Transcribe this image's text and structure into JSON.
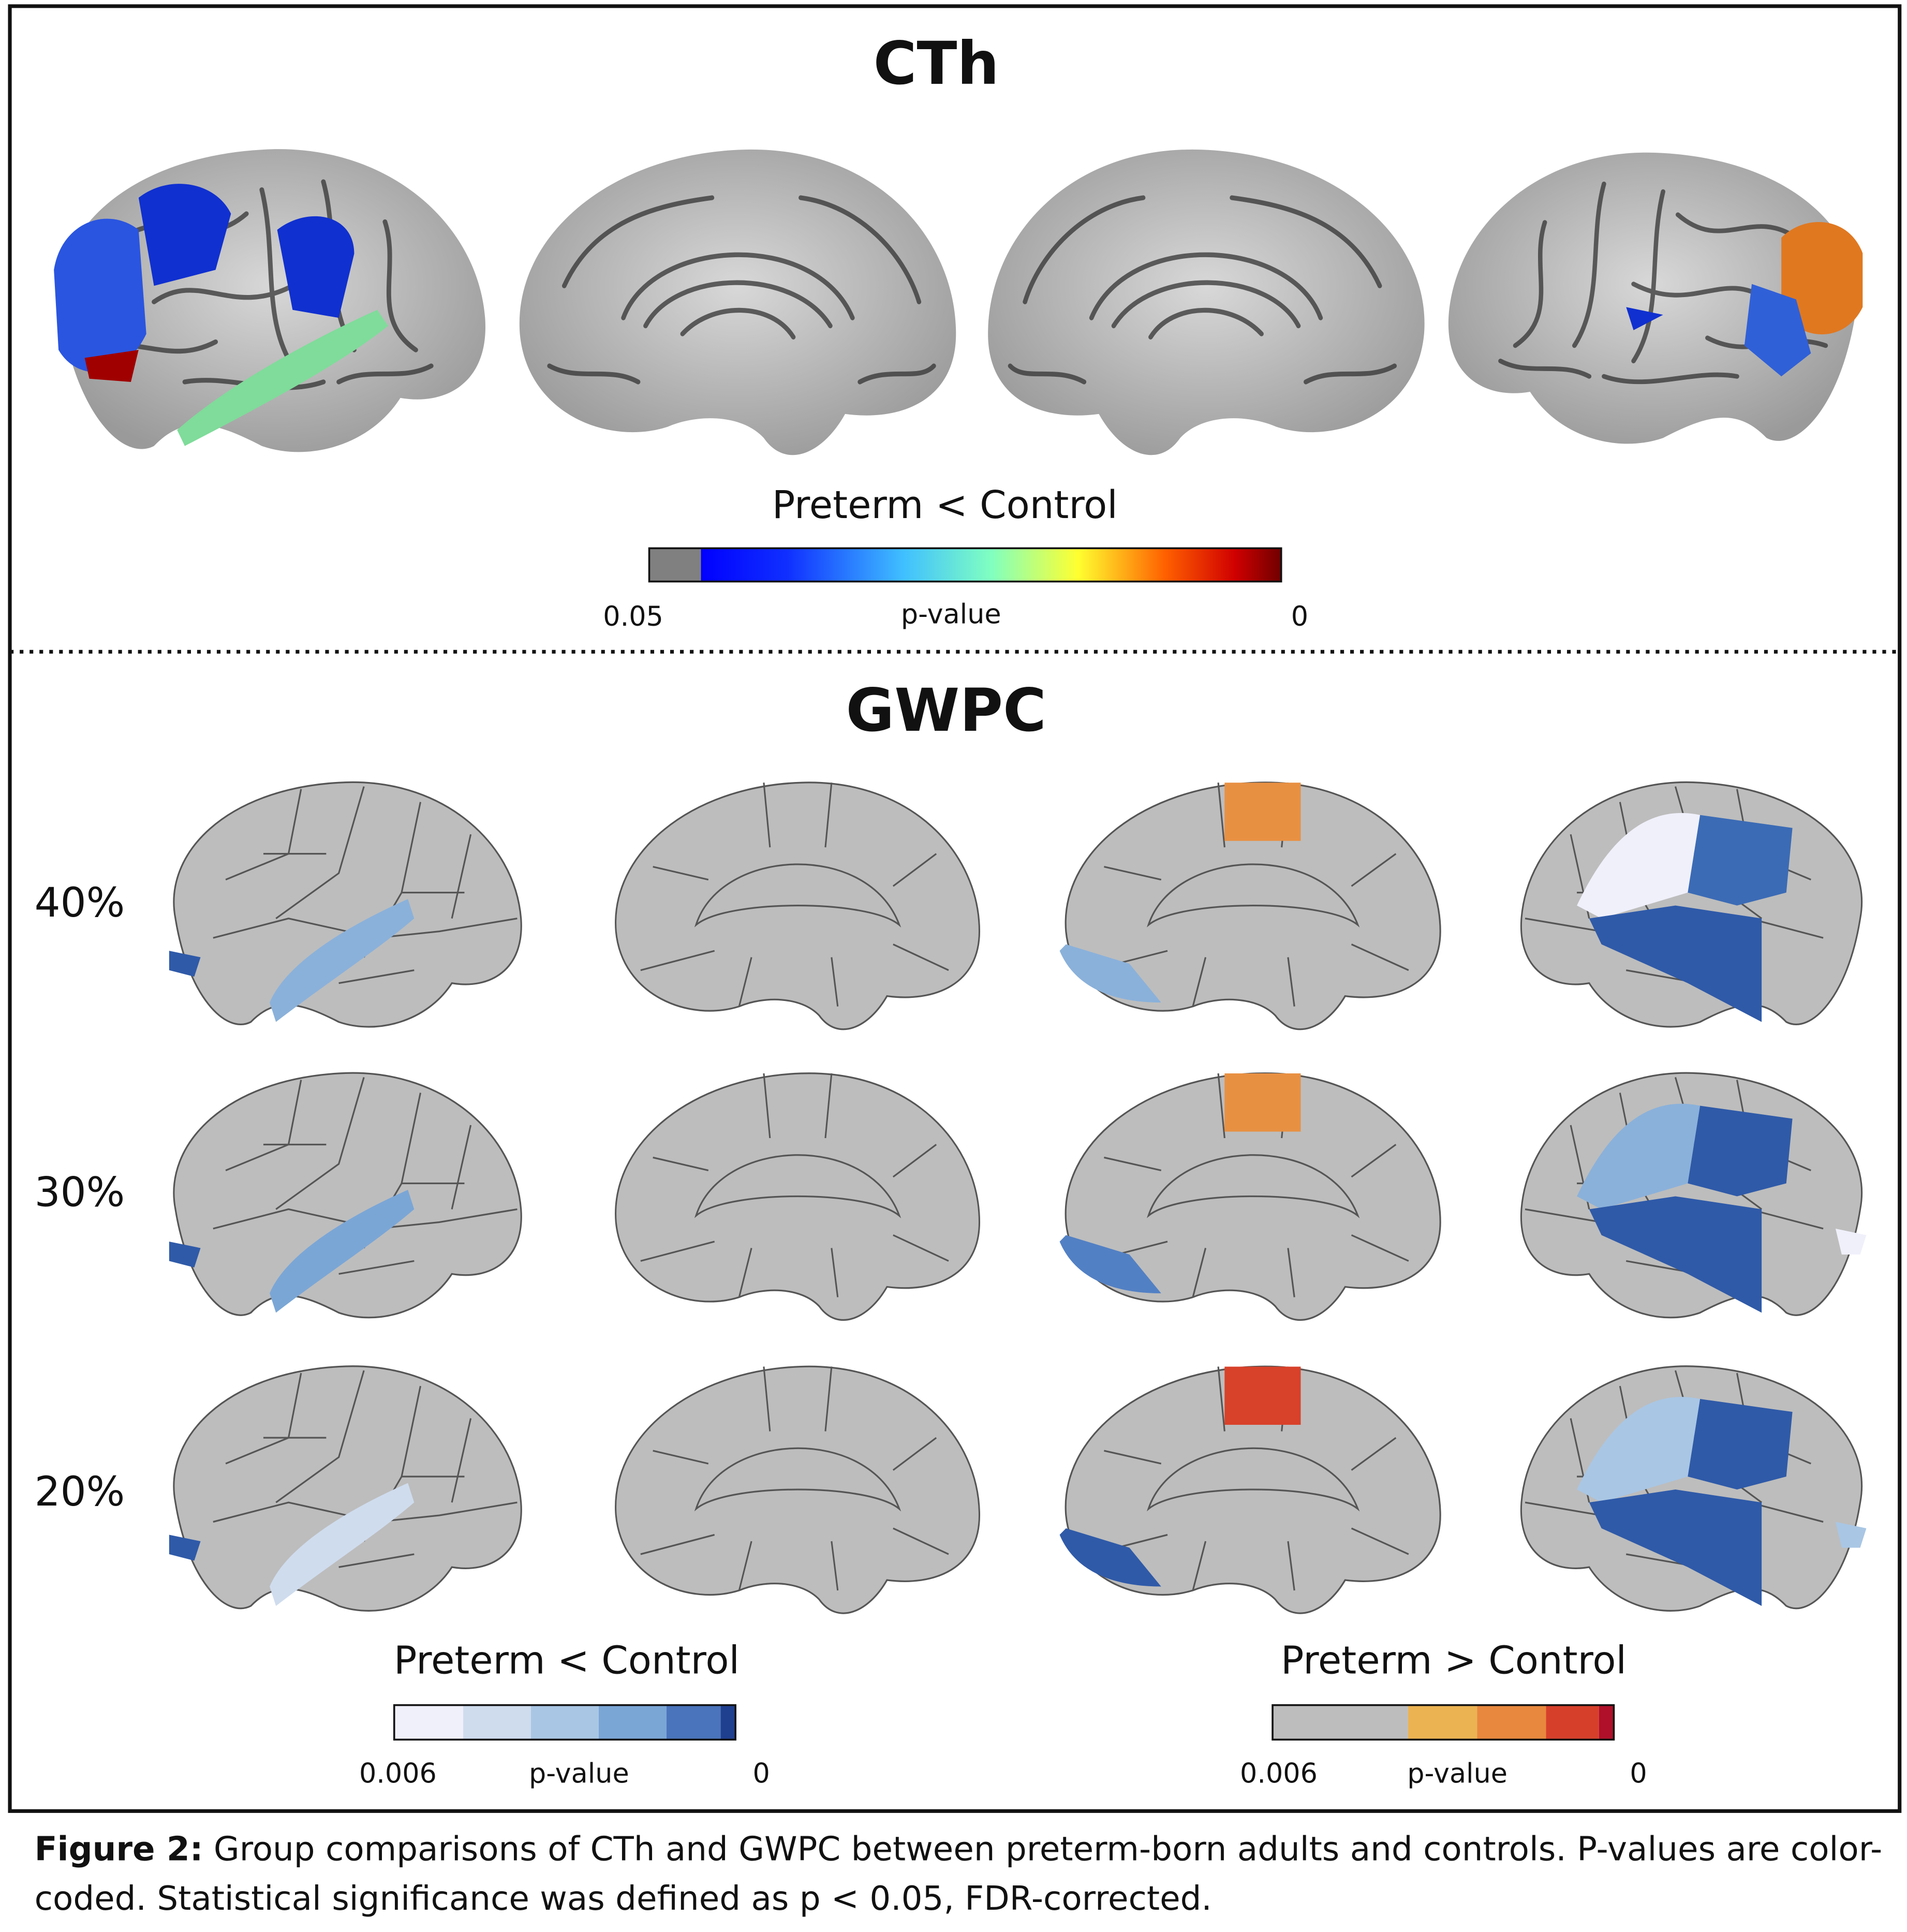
{
  "panels": [
    {
      "title": "CTh",
      "legend": {
        "title": "Preterm < Control",
        "min_label": "0.05",
        "axis_label": "p-value",
        "max_label": "0"
      }
    },
    {
      "title": "GWPC",
      "rows": [
        "40%",
        "30%",
        "20%"
      ],
      "legends": [
        {
          "title": "Preterm < Control",
          "min_label": "0.006",
          "axis_label": "p-value",
          "max_label": "0"
        },
        {
          "title": "Preterm > Control",
          "min_label": "0.006",
          "axis_label": "p-value",
          "max_label": "0"
        }
      ]
    }
  ],
  "caption": {
    "label": "Figure 2:",
    "text": "Group comparisons of CTh and GWPC between preterm-born adults and controls. P-values are color-coded. Statistical significance was defined as p < 0.05, FDR-corrected."
  }
}
